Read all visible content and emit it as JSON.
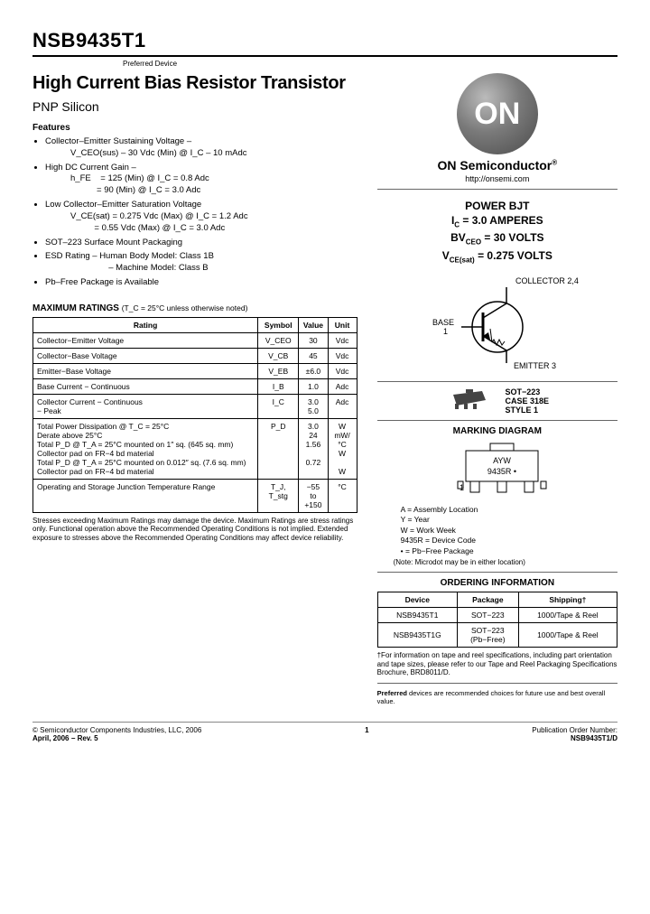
{
  "header": {
    "part_number": "NSB9435T1",
    "preferred": "Preferred Device",
    "title": "High Current Bias Resistor Transistor",
    "subtitle": "PNP Silicon"
  },
  "features_heading": "Features",
  "features": [
    {
      "main": "Collector–Emitter Sustaining Voltage –",
      "sub": "V_CEO(sus) – 30 Vdc (Min) @ I_C – 10 mAdc"
    },
    {
      "main": "High DC Current Gain –",
      "sub": "h_FE    = 125 (Min) @ I_C = 0.8 Adc\n           = 90 (Min) @ I_C = 3.0 Adc"
    },
    {
      "main": "Low Collector–Emitter Saturation Voltage",
      "sub": "V_CE(sat) = 0.275 Vdc (Max) @ I_C = 1.2 Adc\n          = 0.55 Vdc (Max) @ I_C = 3.0 Adc"
    },
    {
      "main": "SOT–223 Surface Mount Packaging",
      "sub": ""
    },
    {
      "main": "ESD Rating  – Human Body Model: Class 1B",
      "sub": "                – Machine Model: Class B"
    },
    {
      "main": "Pb–Free Package is Available",
      "sub": ""
    }
  ],
  "logo_text": "ON",
  "brand": "ON Semiconductor",
  "url": "http://onsemi.com",
  "keyspecs": {
    "l1": "POWER BJT",
    "l2": "I_C = 3.0 AMPERES",
    "l3": "BV_CEO = 30 VOLTS",
    "l4": "V_CE(sat) = 0.275 VOLTS"
  },
  "pinout": {
    "collector": "COLLECTOR 2,4",
    "base": "BASE\n1",
    "emitter": "EMITTER 3"
  },
  "package": {
    "name": "SOT−223",
    "case": "CASE 318E",
    "style": "STYLE 1"
  },
  "marking": {
    "heading": "MARKING DIAGRAM",
    "top": "AYW",
    "bottom": "9435R •",
    "pin1": "1",
    "legend": [
      "A       = Assembly Location",
      "Y       = Year",
      "W      = Work Week",
      "9435R = Device Code",
      "•        = Pb−Free Package"
    ],
    "note": "(Note: Microdot may be in either location)"
  },
  "max_heading": "MAXIMUM RATINGS",
  "max_note": "(T_C = 25°C unless otherwise noted)",
  "ratings_header": [
    "Rating",
    "Symbol",
    "Value",
    "Unit"
  ],
  "ratings": [
    [
      "Collector−Emitter Voltage",
      "V_CEO",
      "30",
      "Vdc"
    ],
    [
      "Collector−Base Voltage",
      "V_CB",
      "45",
      "Vdc"
    ],
    [
      "Emitter−Base Voltage",
      "V_EB",
      "±6.0",
      "Vdc"
    ],
    [
      "Base Current − Continuous",
      "I_B",
      "1.0",
      "Adc"
    ],
    [
      "Collector Current   − Continuous\n                              − Peak",
      "I_C",
      "3.0\n5.0",
      "Adc"
    ],
    [
      "Total Power Dissipation @ T_C = 25°C\n  Derate above 25°C\nTotal P_D @ T_A = 25°C mounted on 1″ sq. (645 sq. mm) Collector pad on FR−4 bd material\nTotal P_D @ T_A = 25°C mounted on 0.012″ sq. (7.6 sq. mm) Collector pad on FR−4 bd material",
      "P_D",
      "3.0\n24\n1.56\n\n0.72",
      "W\nmW/°C\nW\n\nW"
    ],
    [
      "Operating and Storage Junction Temperature Range",
      "T_J, T_stg",
      "−55 to\n+150",
      "°C"
    ]
  ],
  "stress_note": "Stresses exceeding Maximum Ratings may damage the device. Maximum Ratings are stress ratings only. Functional operation above the Recommended Operating Conditions is not implied. Extended exposure to stresses above the Recommended Operating Conditions may affect device reliability.",
  "ordering": {
    "heading": "ORDERING INFORMATION",
    "header": [
      "Device",
      "Package",
      "Shipping†"
    ],
    "rows": [
      [
        "NSB9435T1",
        "SOT−223",
        "1000/Tape & Reel"
      ],
      [
        "NSB9435T1G",
        "SOT−223\n(Pb−Free)",
        "1000/Tape & Reel"
      ]
    ],
    "note": "†For information on tape and reel specifications, including part orientation and tape sizes, please refer to our Tape and Reel Packaging Specifications Brochure, BRD8011/D.",
    "pref_note": "Preferred devices are recommended choices for future use and best overall value."
  },
  "footer": {
    "copyright": "© Semiconductor Components Industries, LLC, 2006",
    "date": "April, 2006 − Rev. 5",
    "page": "1",
    "pub_label": "Publication Order Number:",
    "pub_num": "NSB9435T1/D"
  },
  "colors": {
    "logo_dark": "#4a4a4a",
    "rule": "#000000"
  }
}
